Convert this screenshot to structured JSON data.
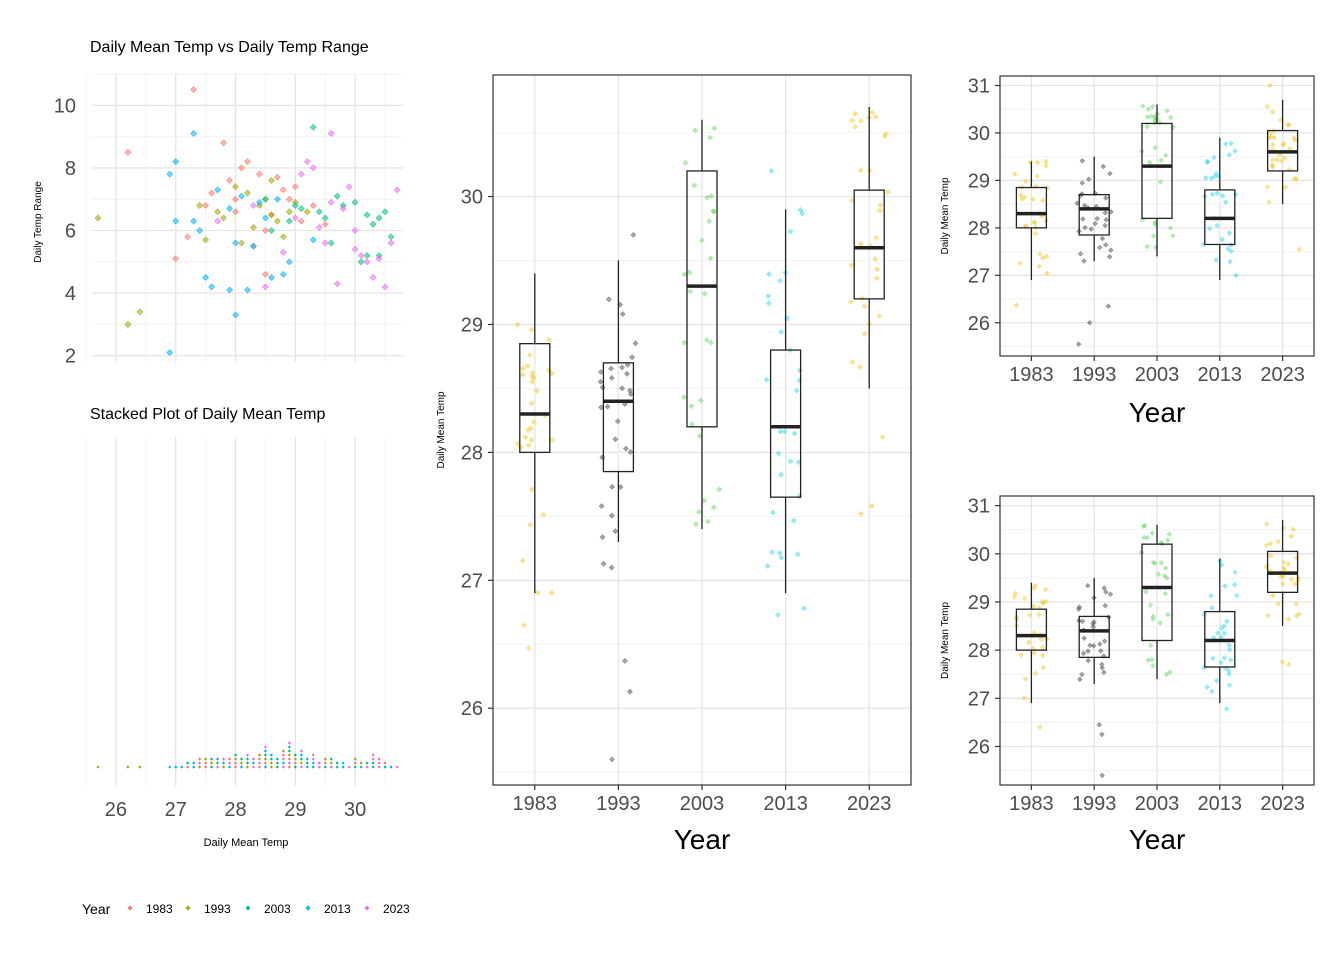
{
  "legend": {
    "title": "Year",
    "items": [
      "1983",
      "1993",
      "2003",
      "2013",
      "2023"
    ]
  },
  "colors": {
    "y1983": "#F8766D",
    "y1993": "#A3A500",
    "y2003": "#00BF7D",
    "y2013": "#00B0F6",
    "y2023": "#E76BF3",
    "box_gold": "#F0C419",
    "box_black": "#333333",
    "box_green": "#5FD35F",
    "box_cyan": "#22D3E6"
  },
  "chart_data": [
    {
      "id": "scatter",
      "type": "scatter",
      "title": "Daily Mean Temp vs Daily Temp Range",
      "xlabel": "",
      "ylabel": "Daily Temp Range",
      "xlim": [
        25.6,
        30.8
      ],
      "ylim": [
        1.8,
        11.0
      ],
      "x_ticks": [
        26,
        27,
        28,
        29,
        30
      ],
      "y_ticks": [
        2,
        4,
        6,
        8,
        10
      ],
      "y_tick_labels": [
        "2",
        "4",
        "6",
        "8",
        "10"
      ],
      "points": [
        {
          "year": "1983",
          "x": 28.4,
          "y": 7.8
        },
        {
          "year": "1983",
          "x": 28.8,
          "y": 7.3
        },
        {
          "year": "1983",
          "x": 27.5,
          "y": 6.8
        },
        {
          "year": "1983",
          "x": 28.1,
          "y": 8.0
        },
        {
          "year": "1983",
          "x": 28.2,
          "y": 8.2
        },
        {
          "year": "1983",
          "x": 28.0,
          "y": 7.0
        },
        {
          "year": "1983",
          "x": 28.6,
          "y": 6.5
        },
        {
          "year": "1983",
          "x": 27.9,
          "y": 7.6
        },
        {
          "year": "1983",
          "x": 29.1,
          "y": 6.3
        },
        {
          "year": "1983",
          "x": 28.5,
          "y": 6.0
        },
        {
          "year": "1983",
          "x": 27.3,
          "y": 10.5
        },
        {
          "year": "1983",
          "x": 28.3,
          "y": 5.5
        },
        {
          "year": "1983",
          "x": 26.2,
          "y": 8.5
        },
        {
          "year": "1983",
          "x": 27.0,
          "y": 5.1
        },
        {
          "year": "1983",
          "x": 27.2,
          "y": 5.8
        },
        {
          "year": "1983",
          "x": 28.9,
          "y": 7.0
        },
        {
          "year": "1983",
          "x": 29.3,
          "y": 6.8
        },
        {
          "year": "1983",
          "x": 28.7,
          "y": 7.7
        },
        {
          "year": "1983",
          "x": 29.5,
          "y": 6.2
        },
        {
          "year": "1983",
          "x": 27.8,
          "y": 8.8
        },
        {
          "year": "1983",
          "x": 28.0,
          "y": 6.6
        },
        {
          "year": "1983",
          "x": 29.0,
          "y": 7.4
        },
        {
          "year": "1983",
          "x": 27.6,
          "y": 7.2
        },
        {
          "year": "1983",
          "x": 28.5,
          "y": 4.6
        },
        {
          "year": "1993",
          "x": 25.7,
          "y": 6.4
        },
        {
          "year": "1993",
          "x": 26.4,
          "y": 3.4
        },
        {
          "year": "1993",
          "x": 26.2,
          "y": 3.0
        },
        {
          "year": "1993",
          "x": 28.4,
          "y": 6.8
        },
        {
          "year": "1993",
          "x": 28.6,
          "y": 6.5
        },
        {
          "year": "1993",
          "x": 28.9,
          "y": 6.6
        },
        {
          "year": "1993",
          "x": 28.2,
          "y": 7.2
        },
        {
          "year": "1993",
          "x": 27.8,
          "y": 6.4
        },
        {
          "year": "1993",
          "x": 28.3,
          "y": 6.1
        },
        {
          "year": "1993",
          "x": 28.8,
          "y": 5.8
        },
        {
          "year": "1993",
          "x": 28.5,
          "y": 7.0
        },
        {
          "year": "1993",
          "x": 27.5,
          "y": 5.7
        },
        {
          "year": "1993",
          "x": 29.0,
          "y": 6.9
        },
        {
          "year": "1993",
          "x": 27.4,
          "y": 6.8
        },
        {
          "year": "1993",
          "x": 28.7,
          "y": 6.3
        },
        {
          "year": "1993",
          "x": 28.1,
          "y": 5.6
        },
        {
          "year": "1993",
          "x": 29.2,
          "y": 6.6
        },
        {
          "year": "1993",
          "x": 28.0,
          "y": 7.4
        },
        {
          "year": "1993",
          "x": 27.7,
          "y": 6.6
        },
        {
          "year": "1993",
          "x": 28.6,
          "y": 7.6
        },
        {
          "year": "2003",
          "x": 29.3,
          "y": 9.3
        },
        {
          "year": "2003",
          "x": 29.8,
          "y": 6.8
        },
        {
          "year": "2003",
          "x": 30.0,
          "y": 6.9
        },
        {
          "year": "2003",
          "x": 30.4,
          "y": 5.2
        },
        {
          "year": "2003",
          "x": 30.6,
          "y": 5.8
        },
        {
          "year": "2003",
          "x": 29.5,
          "y": 6.4
        },
        {
          "year": "2003",
          "x": 30.2,
          "y": 6.5
        },
        {
          "year": "2003",
          "x": 29.1,
          "y": 6.7
        },
        {
          "year": "2003",
          "x": 30.3,
          "y": 6.2
        },
        {
          "year": "2003",
          "x": 29.7,
          "y": 7.1
        },
        {
          "year": "2003",
          "x": 30.5,
          "y": 6.6
        },
        {
          "year": "2003",
          "x": 28.9,
          "y": 6.3
        },
        {
          "year": "2003",
          "x": 29.0,
          "y": 6.8
        },
        {
          "year": "2003",
          "x": 28.6,
          "y": 6.0
        },
        {
          "year": "2003",
          "x": 30.1,
          "y": 5.0
        },
        {
          "year": "2003",
          "x": 30.4,
          "y": 6.4
        },
        {
          "year": "2003",
          "x": 29.4,
          "y": 6.6
        },
        {
          "year": "2003",
          "x": 28.5,
          "y": 7.0
        },
        {
          "year": "2003",
          "x": 30.2,
          "y": 5.2
        },
        {
          "year": "2003",
          "x": 29.6,
          "y": 5.6
        },
        {
          "year": "2013",
          "x": 26.9,
          "y": 2.1
        },
        {
          "year": "2013",
          "x": 27.0,
          "y": 8.2
        },
        {
          "year": "2013",
          "x": 26.9,
          "y": 7.8
        },
        {
          "year": "2013",
          "x": 27.3,
          "y": 9.1
        },
        {
          "year": "2013",
          "x": 27.6,
          "y": 4.2
        },
        {
          "year": "2013",
          "x": 27.5,
          "y": 4.5
        },
        {
          "year": "2013",
          "x": 27.9,
          "y": 4.1
        },
        {
          "year": "2013",
          "x": 28.0,
          "y": 5.6
        },
        {
          "year": "2013",
          "x": 28.2,
          "y": 4.1
        },
        {
          "year": "2013",
          "x": 28.6,
          "y": 4.5
        },
        {
          "year": "2013",
          "x": 27.3,
          "y": 6.3
        },
        {
          "year": "2013",
          "x": 27.0,
          "y": 6.3
        },
        {
          "year": "2013",
          "x": 27.7,
          "y": 7.3
        },
        {
          "year": "2013",
          "x": 28.1,
          "y": 7.1
        },
        {
          "year": "2013",
          "x": 28.4,
          "y": 6.9
        },
        {
          "year": "2013",
          "x": 28.7,
          "y": 7.0
        },
        {
          "year": "2013",
          "x": 28.9,
          "y": 5.0
        },
        {
          "year": "2013",
          "x": 28.0,
          "y": 3.3
        },
        {
          "year": "2013",
          "x": 27.4,
          "y": 6.0
        },
        {
          "year": "2013",
          "x": 28.3,
          "y": 5.5
        },
        {
          "year": "2013",
          "x": 28.8,
          "y": 4.6
        },
        {
          "year": "2013",
          "x": 29.3,
          "y": 5.7
        },
        {
          "year": "2013",
          "x": 27.9,
          "y": 6.7
        },
        {
          "year": "2013",
          "x": 28.5,
          "y": 6.4
        },
        {
          "year": "2023",
          "x": 29.6,
          "y": 9.1
        },
        {
          "year": "2023",
          "x": 29.2,
          "y": 8.2
        },
        {
          "year": "2023",
          "x": 29.9,
          "y": 7.4
        },
        {
          "year": "2023",
          "x": 30.1,
          "y": 5.2
        },
        {
          "year": "2023",
          "x": 30.3,
          "y": 4.5
        },
        {
          "year": "2023",
          "x": 30.5,
          "y": 4.2
        },
        {
          "year": "2023",
          "x": 30.7,
          "y": 7.3
        },
        {
          "year": "2023",
          "x": 29.7,
          "y": 4.3
        },
        {
          "year": "2023",
          "x": 28.8,
          "y": 5.3
        },
        {
          "year": "2023",
          "x": 29.4,
          "y": 6.1
        },
        {
          "year": "2023",
          "x": 29.5,
          "y": 5.6
        },
        {
          "year": "2023",
          "x": 30.0,
          "y": 5.4
        },
        {
          "year": "2023",
          "x": 29.1,
          "y": 7.8
        },
        {
          "year": "2023",
          "x": 29.8,
          "y": 6.7
        },
        {
          "year": "2023",
          "x": 30.4,
          "y": 5.1
        },
        {
          "year": "2023",
          "x": 29.0,
          "y": 6.4
        },
        {
          "year": "2023",
          "x": 30.6,
          "y": 5.6
        },
        {
          "year": "2023",
          "x": 29.3,
          "y": 8.0
        },
        {
          "year": "2023",
          "x": 28.3,
          "y": 6.8
        },
        {
          "year": "2023",
          "x": 27.7,
          "y": 6.3
        },
        {
          "year": "2023",
          "x": 30.2,
          "y": 5.0
        },
        {
          "year": "2023",
          "x": 29.6,
          "y": 6.9
        },
        {
          "year": "2023",
          "x": 28.5,
          "y": 4.2
        },
        {
          "year": "2023",
          "x": 30.0,
          "y": 6.0
        }
      ]
    },
    {
      "id": "stacked",
      "type": "scatter",
      "title": "Stacked Plot of Daily Mean Temp",
      "xlabel": "Daily Mean Temp",
      "ylabel": "",
      "xlim": [
        25.6,
        30.8
      ],
      "x_ticks": [
        26,
        27,
        28,
        29,
        30
      ],
      "grid": "vertical-only",
      "stack_counts": [
        {
          "x": 25.7,
          "count": 1,
          "year": "1993"
        },
        {
          "x": 26.2,
          "count": 1,
          "year": "1993"
        },
        {
          "x": 26.4,
          "count": 1,
          "year": "1993"
        },
        {
          "x": 26.9,
          "count": 1,
          "year": "2013"
        },
        {
          "x": 27.0,
          "count": 1,
          "year": "2013"
        },
        {
          "x": 27.1,
          "count": 1,
          "year": "2013"
        },
        {
          "x": 27.2,
          "count": 2,
          "year": "1983"
        },
        {
          "x": 27.3,
          "count": 2,
          "year": "2013"
        },
        {
          "x": 27.4,
          "count": 3,
          "year": "1993"
        },
        {
          "x": 27.5,
          "count": 3,
          "year": "1983"
        },
        {
          "x": 27.6,
          "count": 3,
          "year": "2003"
        },
        {
          "x": 27.7,
          "count": 3,
          "year": "2023"
        },
        {
          "x": 27.8,
          "count": 3,
          "year": "1993"
        },
        {
          "x": 27.9,
          "count": 3,
          "year": "2013"
        },
        {
          "x": 28.0,
          "count": 4,
          "year": "1983"
        },
        {
          "x": 28.1,
          "count": 3,
          "year": "2013"
        },
        {
          "x": 28.2,
          "count": 4,
          "year": "1993"
        },
        {
          "x": 28.3,
          "count": 3,
          "year": "2023"
        },
        {
          "x": 28.4,
          "count": 4,
          "year": "1983"
        },
        {
          "x": 28.5,
          "count": 6,
          "year": "2013"
        },
        {
          "x": 28.6,
          "count": 4,
          "year": "1993"
        },
        {
          "x": 28.7,
          "count": 3,
          "year": "2003"
        },
        {
          "x": 28.8,
          "count": 5,
          "year": "2023"
        },
        {
          "x": 28.9,
          "count": 7,
          "year": "1983"
        },
        {
          "x": 29.0,
          "count": 4,
          "year": "2003"
        },
        {
          "x": 29.1,
          "count": 5,
          "year": "2023"
        },
        {
          "x": 29.2,
          "count": 3,
          "year": "2013"
        },
        {
          "x": 29.3,
          "count": 4,
          "year": "2003"
        },
        {
          "x": 29.4,
          "count": 2,
          "year": "2023"
        },
        {
          "x": 29.5,
          "count": 3,
          "year": "2003"
        },
        {
          "x": 29.6,
          "count": 3,
          "year": "2023"
        },
        {
          "x": 29.7,
          "count": 2,
          "year": "2003"
        },
        {
          "x": 29.8,
          "count": 2,
          "year": "2013"
        },
        {
          "x": 29.9,
          "count": 1,
          "year": "2023"
        },
        {
          "x": 30.0,
          "count": 3,
          "year": "2003"
        },
        {
          "x": 30.1,
          "count": 2,
          "year": "2013"
        },
        {
          "x": 30.2,
          "count": 2,
          "year": "2023"
        },
        {
          "x": 30.3,
          "count": 4,
          "year": "2003"
        },
        {
          "x": 30.4,
          "count": 3,
          "year": "2023"
        },
        {
          "x": 30.5,
          "count": 2,
          "year": "2003"
        },
        {
          "x": 30.6,
          "count": 1,
          "year": "2013"
        },
        {
          "x": 30.7,
          "count": 1,
          "year": "2023"
        }
      ]
    },
    {
      "id": "box_main",
      "type": "box",
      "title": "",
      "xlabel": "Year",
      "ylabel": "Daily Mean Temp",
      "categories": [
        "1983",
        "1993",
        "2003",
        "2013",
        "2023"
      ],
      "ylim": [
        25.4,
        30.95
      ],
      "y_ticks": [
        26,
        27,
        28,
        29,
        30
      ],
      "box_colors": [
        "gold",
        "black",
        "green",
        "cyan",
        "gold"
      ],
      "boxes": [
        {
          "min": 26.9,
          "q1": 28.0,
          "median": 28.3,
          "q3": 28.85,
          "max": 29.4,
          "outliers": [
            26.47,
            26.65,
            26.9
          ]
        },
        {
          "min": 27.3,
          "q1": 27.85,
          "median": 28.4,
          "q3": 28.7,
          "max": 29.5,
          "outliers": [
            25.6,
            26.13,
            26.37,
            27.1,
            27.13,
            29.7
          ]
        },
        {
          "min": 27.4,
          "q1": 28.2,
          "median": 29.3,
          "q3": 30.2,
          "max": 30.6,
          "outliers": []
        },
        {
          "min": 26.9,
          "q1": 27.65,
          "median": 28.2,
          "q3": 28.8,
          "max": 29.9,
          "outliers": [
            26.73,
            26.78,
            30.2
          ]
        },
        {
          "min": 28.5,
          "q1": 29.2,
          "median": 29.6,
          "q3": 30.05,
          "max": 30.7,
          "outliers": [
            27.52,
            27.58,
            28.12
          ]
        }
      ]
    },
    {
      "id": "box_top_right",
      "type": "box",
      "title": "",
      "xlabel": "Year",
      "ylabel": "Daily Mean Temp",
      "categories": [
        "1983",
        "1993",
        "2003",
        "2013",
        "2023"
      ],
      "ylim": [
        25.3,
        31.2
      ],
      "y_ticks": [
        26,
        27,
        28,
        29,
        30,
        31
      ],
      "box_colors": [
        "gold",
        "black",
        "green",
        "cyan",
        "gold"
      ],
      "boxes": [
        {
          "min": 26.9,
          "q1": 28.0,
          "median": 28.3,
          "q3": 28.85,
          "max": 29.4,
          "outliers": [
            26.37
          ]
        },
        {
          "min": 27.3,
          "q1": 27.85,
          "median": 28.4,
          "q3": 28.7,
          "max": 29.5,
          "outliers": [
            25.55,
            26.0,
            26.35
          ]
        },
        {
          "min": 27.4,
          "q1": 28.2,
          "median": 29.3,
          "q3": 30.2,
          "max": 30.6,
          "outliers": []
        },
        {
          "min": 26.9,
          "q1": 27.65,
          "median": 28.2,
          "q3": 28.8,
          "max": 29.9,
          "outliers": []
        },
        {
          "min": 28.5,
          "q1": 29.2,
          "median": 29.6,
          "q3": 30.05,
          "max": 30.7,
          "outliers": [
            27.55,
            31.0
          ]
        }
      ]
    },
    {
      "id": "box_bottom_right",
      "type": "box",
      "title": "",
      "xlabel": "Year",
      "ylabel": "Daily Mean Temp",
      "categories": [
        "1983",
        "1993",
        "2003",
        "2013",
        "2023"
      ],
      "ylim": [
        25.2,
        31.2
      ],
      "y_ticks": [
        26,
        27,
        28,
        29,
        30,
        31
      ],
      "box_colors": [
        "gold",
        "black",
        "green",
        "cyan",
        "gold"
      ],
      "boxes": [
        {
          "min": 26.9,
          "q1": 28.0,
          "median": 28.3,
          "q3": 28.85,
          "max": 29.4,
          "outliers": [
            26.4
          ]
        },
        {
          "min": 27.3,
          "q1": 27.85,
          "median": 28.4,
          "q3": 28.7,
          "max": 29.5,
          "outliers": [
            25.4,
            26.25,
            26.45
          ]
        },
        {
          "min": 27.4,
          "q1": 28.2,
          "median": 29.3,
          "q3": 30.2,
          "max": 30.6,
          "outliers": []
        },
        {
          "min": 26.9,
          "q1": 27.65,
          "median": 28.2,
          "q3": 28.8,
          "max": 29.9,
          "outliers": [
            26.78
          ]
        },
        {
          "min": 28.5,
          "q1": 29.2,
          "median": 29.6,
          "q3": 30.05,
          "max": 30.7,
          "outliers": [
            27.7,
            27.75
          ]
        }
      ]
    }
  ]
}
